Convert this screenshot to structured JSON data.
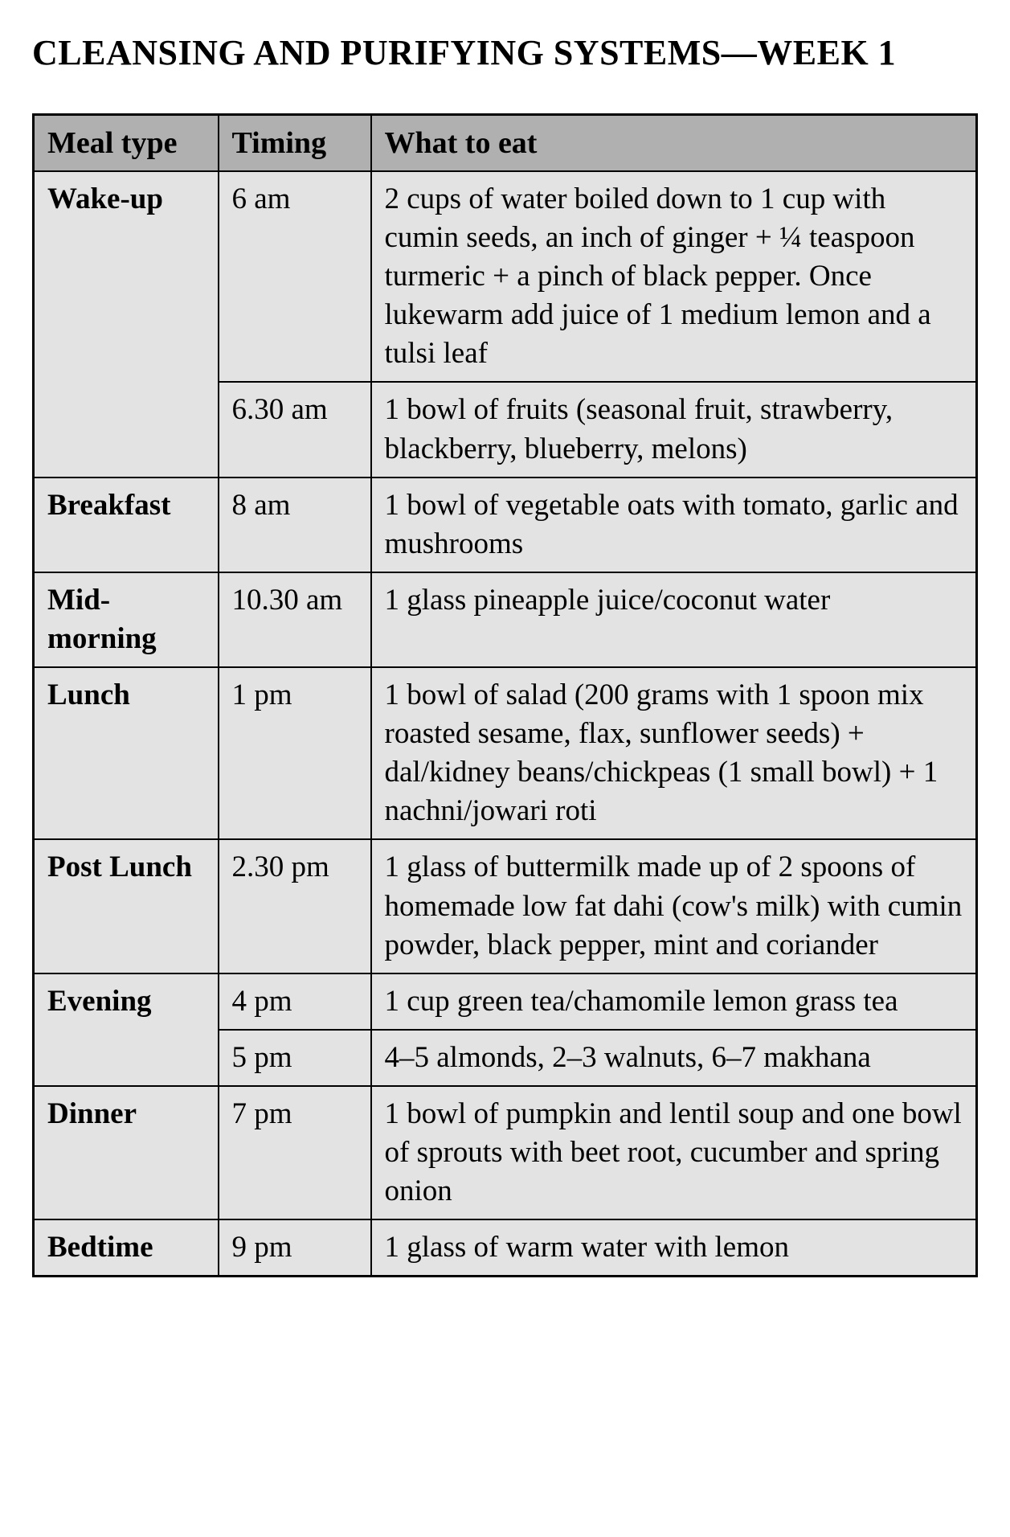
{
  "title": "CLEANSING AND PURIFYING SYSTEMS—WEEK 1",
  "table": {
    "columns": [
      "Meal type",
      "Timing",
      "What to eat"
    ],
    "header_bg": "#b0b0b0",
    "cell_bg": "#e3e3e3",
    "border_color": "#000000",
    "title_fontsize": 44,
    "header_fontsize": 38,
    "cell_fontsize": 37,
    "rows": [
      {
        "meal_type": "Wake-up",
        "rowspan": 2,
        "entries": [
          {
            "timing": "6 am",
            "what": "2 cups of water boiled down to 1 cup with cumin seeds, an inch of ginger + ¼ teaspoon turmeric + a pinch of black pepper. Once lukewarm add juice of 1 medium lemon and a tulsi leaf"
          },
          {
            "timing": "6.30 am",
            "what": "1 bowl of fruits (seasonal fruit, strawberry, blackberry, blueberry, melons)"
          }
        ]
      },
      {
        "meal_type": "Breakfast",
        "rowspan": 1,
        "entries": [
          {
            "timing": "8 am",
            "what": "1 bowl of vegetable oats with tomato, garlic and mushrooms"
          }
        ]
      },
      {
        "meal_type": "Mid-morning",
        "rowspan": 1,
        "entries": [
          {
            "timing": "10.30 am",
            "what": "1 glass pineapple juice/coconut water"
          }
        ]
      },
      {
        "meal_type": "Lunch",
        "rowspan": 1,
        "entries": [
          {
            "timing": "1 pm",
            "what": "1 bowl of salad (200 grams with 1 spoon mix roasted sesame, flax, sunflower seeds) + dal/kidney beans/chickpeas (1 small bowl) + 1 nachni/jowari roti"
          }
        ]
      },
      {
        "meal_type": "Post Lunch",
        "rowspan": 1,
        "entries": [
          {
            "timing": "2.30 pm",
            "what": "1 glass of buttermilk made up of 2 spoons of homemade low fat dahi (cow's milk) with cumin powder, black pepper, mint and coriander"
          }
        ]
      },
      {
        "meal_type": "Evening",
        "rowspan": 2,
        "entries": [
          {
            "timing": "4 pm",
            "what": "1 cup green tea/chamomile lemon grass tea"
          },
          {
            "timing": "5 pm",
            "what": "4–5 almonds, 2–3 walnuts, 6–7 makhana"
          }
        ]
      },
      {
        "meal_type": "Dinner",
        "rowspan": 1,
        "entries": [
          {
            "timing": "7 pm",
            "what": "1 bowl of pumpkin and lentil soup and one bowl of sprouts with beet root, cucumber and spring onion"
          }
        ]
      },
      {
        "meal_type": "Bedtime",
        "rowspan": 1,
        "entries": [
          {
            "timing": "9 pm",
            "what": "1 glass of warm water with lemon"
          }
        ]
      }
    ]
  }
}
